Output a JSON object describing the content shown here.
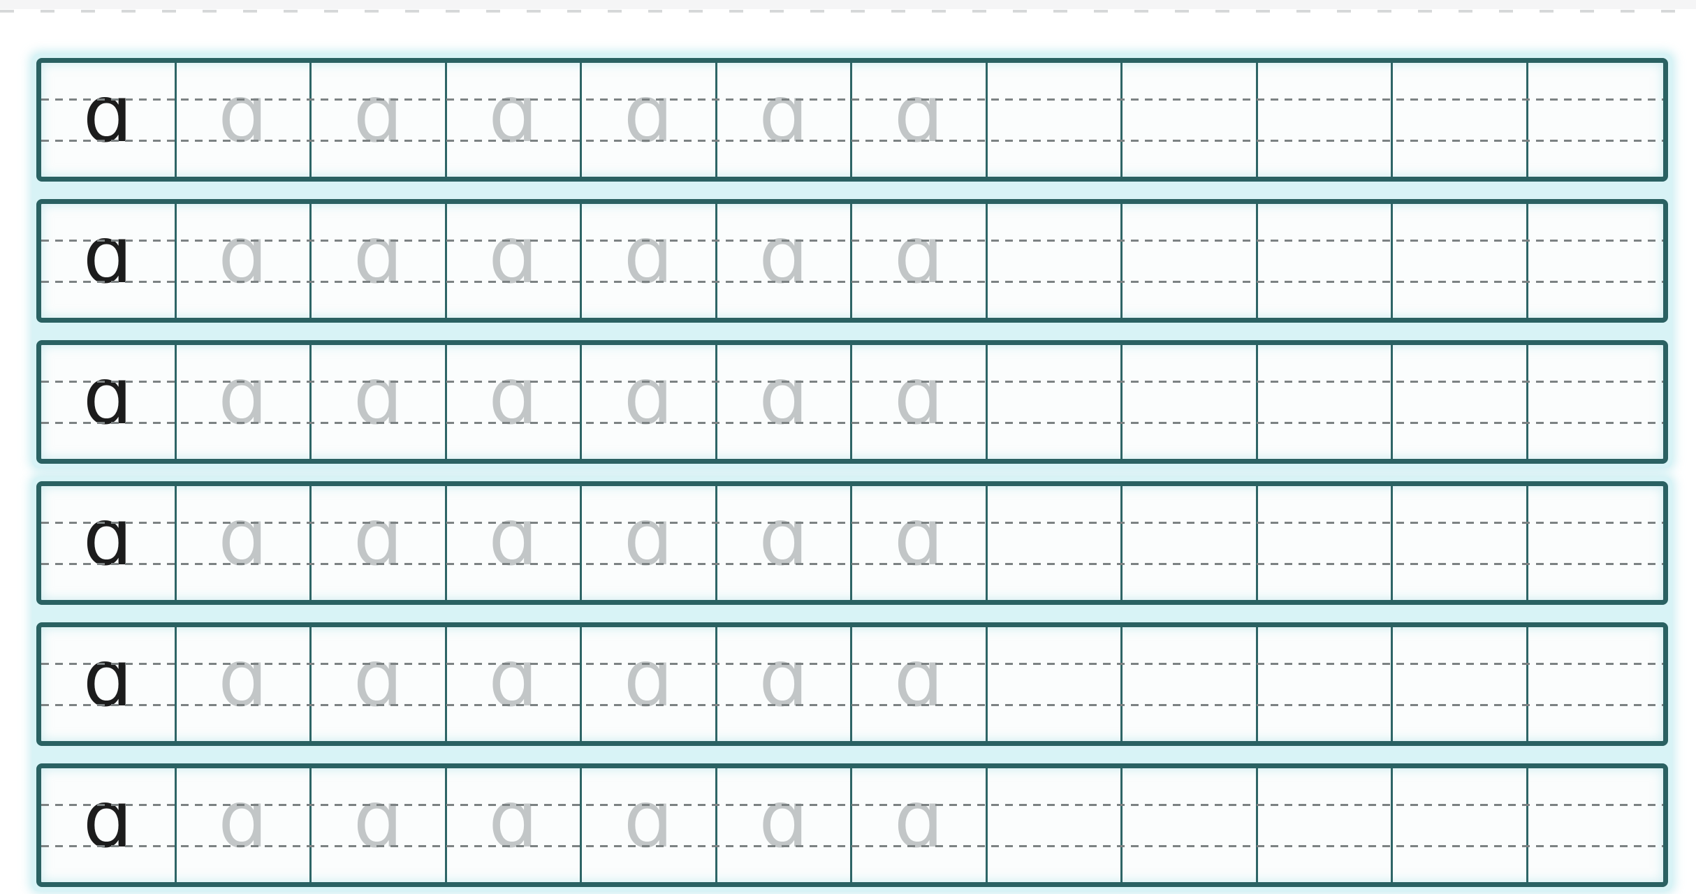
{
  "worksheet": {
    "type": "handwriting-practice-sheet",
    "practice_letter": "ɑ",
    "columns_per_row": 12,
    "example_cells_per_row": 1,
    "trace_cells_per_row": 6,
    "blank_cells_per_row": 5,
    "colors": {
      "grid_border": "#2a6162",
      "cell_divider": "#2e6566",
      "dashed_midline": "#7c8283",
      "halo": "#d8f3f6",
      "cell_background": "#fbfdfd",
      "example_letter": "#1c1c1c",
      "trace_letter": "#c2c6c7",
      "page_background": "#ffffff"
    },
    "rows": [
      {
        "cells": [
          "ɑ",
          "ɑ",
          "ɑ",
          "ɑ",
          "ɑ",
          "ɑ",
          "ɑ",
          "",
          "",
          "",
          "",
          ""
        ]
      },
      {
        "cells": [
          "ɑ",
          "ɑ",
          "ɑ",
          "ɑ",
          "ɑ",
          "ɑ",
          "ɑ",
          "",
          "",
          "",
          "",
          ""
        ]
      },
      {
        "cells": [
          "ɑ",
          "ɑ",
          "ɑ",
          "ɑ",
          "ɑ",
          "ɑ",
          "ɑ",
          "",
          "",
          "",
          "",
          ""
        ]
      },
      {
        "cells": [
          "ɑ",
          "ɑ",
          "ɑ",
          "ɑ",
          "ɑ",
          "ɑ",
          "ɑ",
          "",
          "",
          "",
          "",
          ""
        ]
      },
      {
        "cells": [
          "ɑ",
          "ɑ",
          "ɑ",
          "ɑ",
          "ɑ",
          "ɑ",
          "ɑ",
          "",
          "",
          "",
          "",
          ""
        ]
      },
      {
        "cells": [
          "ɑ",
          "ɑ",
          "ɑ",
          "ɑ",
          "ɑ",
          "ɑ",
          "ɑ",
          "",
          "",
          "",
          "",
          ""
        ]
      }
    ]
  }
}
